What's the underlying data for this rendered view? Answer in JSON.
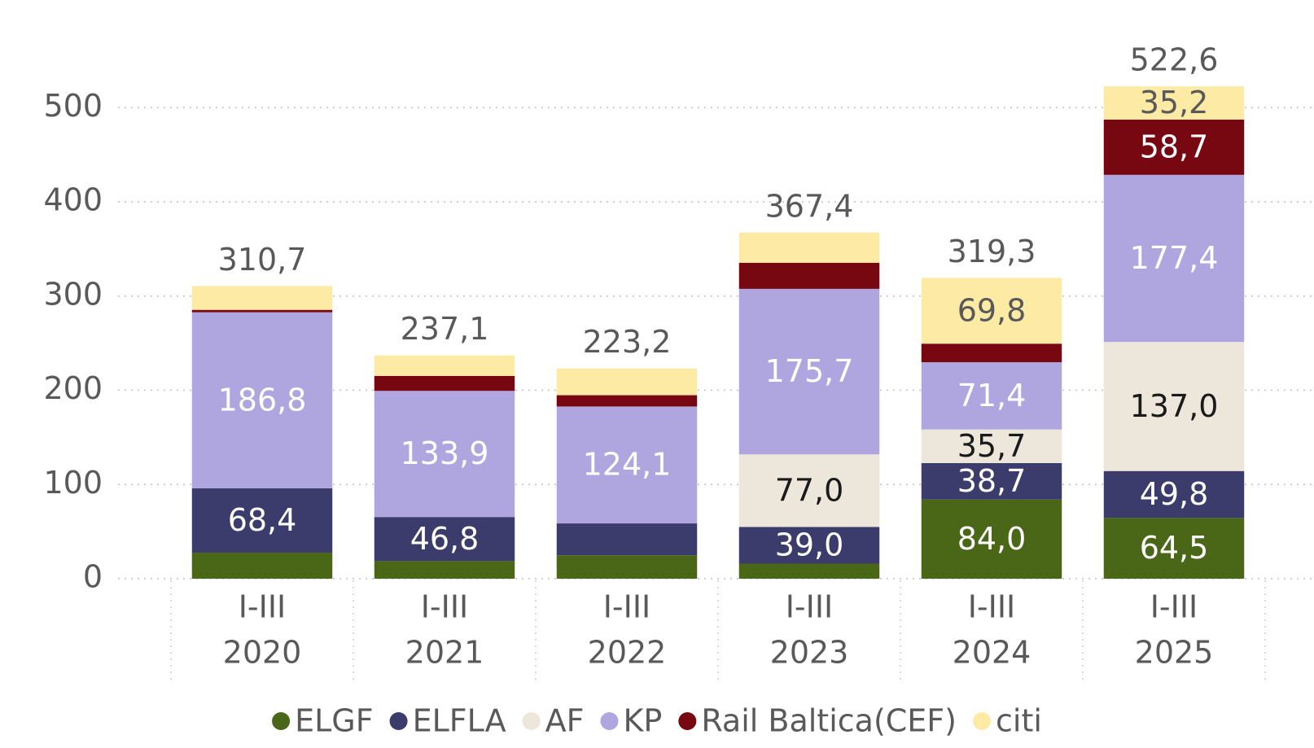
{
  "chart_data": {
    "type": "stacked-bar",
    "categories": [
      [
        "I-III",
        "2020"
      ],
      [
        "I-III",
        "2021"
      ],
      [
        "I-III",
        "2022"
      ],
      [
        "I-III",
        "2023"
      ],
      [
        "I-III",
        "2024"
      ],
      [
        "I-III",
        "2025"
      ]
    ],
    "series": [
      {
        "name": "ELGF",
        "color": "#4a6717",
        "label_color": "#ffffff",
        "values": [
          27.6,
          18.7,
          24.9,
          16.0,
          84.0,
          64.5
        ],
        "value_labels": [
          null,
          null,
          null,
          null,
          "84,0",
          "64,5"
        ]
      },
      {
        "name": "ELFLA",
        "color": "#3c3c6c",
        "label_color": "#ffffff",
        "values": [
          68.4,
          46.8,
          33.8,
          39.0,
          38.7,
          49.8
        ],
        "value_labels": [
          "68,4",
          "46,8",
          null,
          "39,0",
          "38,7",
          "49,8"
        ]
      },
      {
        "name": "AF",
        "color": "#ede6da",
        "label_color": "#1a1a1a",
        "values": [
          0,
          0,
          0,
          77.0,
          35.7,
          137.0
        ],
        "value_labels": [
          null,
          null,
          null,
          "77,0",
          "35,7",
          "137,0"
        ]
      },
      {
        "name": "KP",
        "color": "#b0a6df",
        "label_color": "#ffffff",
        "values": [
          186.8,
          133.9,
          124.1,
          175.7,
          71.4,
          177.4
        ],
        "value_labels": [
          "186,8",
          "133,9",
          "124,1",
          "175,7",
          "71,4",
          "177,4"
        ]
      },
      {
        "name": "Rail Baltica(CEF)",
        "color": "#770812",
        "label_color": "#ffffff",
        "values": [
          2.6,
          15.9,
          12.0,
          27.7,
          19.7,
          58.7
        ],
        "value_labels": [
          null,
          null,
          null,
          null,
          null,
          "58,7"
        ]
      },
      {
        "name": "citi",
        "color": "#fdeaa5",
        "label_color": "#595959",
        "values": [
          25.3,
          21.8,
          28.4,
          32.0,
          69.8,
          35.2
        ],
        "value_labels": [
          null,
          null,
          null,
          null,
          "69,8",
          "35,2"
        ]
      }
    ],
    "totals": [
      310.7,
      237.1,
      223.2,
      367.4,
      319.3,
      522.6
    ],
    "total_labels": [
      "310,7",
      "237,1",
      "223,2",
      "367,4",
      "319,3",
      "522,6"
    ],
    "ylim": [
      0,
      540
    ],
    "yticks": [
      0,
      100,
      200,
      300,
      400,
      500
    ],
    "grid": true,
    "legend": "bottom"
  }
}
